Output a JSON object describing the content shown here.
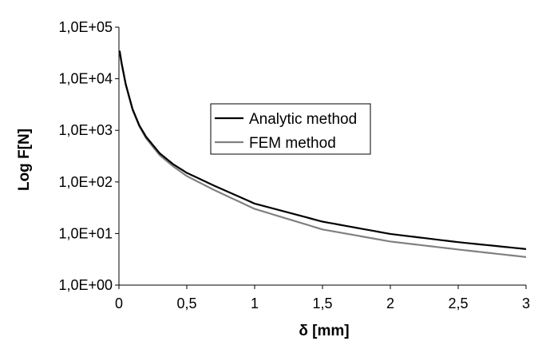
{
  "chart_data": {
    "type": "line",
    "xlabel": "δ [mm]",
    "ylabel": "Log F[N]",
    "y_scale": "log",
    "xlim": [
      0,
      3
    ],
    "ylim": [
      1,
      100000
    ],
    "x_ticks": [
      0,
      0.5,
      1,
      1.5,
      2,
      2.5,
      3
    ],
    "x_tick_labels": [
      "0",
      "0,5",
      "1",
      "1,5",
      "2",
      "2,5",
      "3"
    ],
    "y_ticks": [
      1,
      10,
      100,
      1000,
      10000,
      100000
    ],
    "y_tick_labels": [
      "1,0E+00",
      "1,0E+01",
      "1,0E+02",
      "1,0E+03",
      "1,0E+04",
      "1,0E+05"
    ],
    "grid": false,
    "legend_position": "center",
    "x": [
      0.005,
      0.02,
      0.05,
      0.1,
      0.15,
      0.2,
      0.3,
      0.4,
      0.5,
      0.7,
      1.0,
      1.5,
      2.0,
      2.5,
      3.0
    ],
    "series": [
      {
        "name": "Analytic method",
        "color": "#000000",
        "values": [
          35000,
          20000,
          7900,
          2600,
          1250,
          750,
          360,
          220,
          150,
          85,
          38,
          17,
          9.8,
          6.8,
          5.0
        ]
      },
      {
        "name": "FEM method",
        "color": "#808080",
        "values": [
          33000,
          19000,
          7600,
          2500,
          1200,
          700,
          330,
          200,
          130,
          70,
          30,
          12,
          7.0,
          4.9,
          3.5
        ]
      }
    ]
  }
}
